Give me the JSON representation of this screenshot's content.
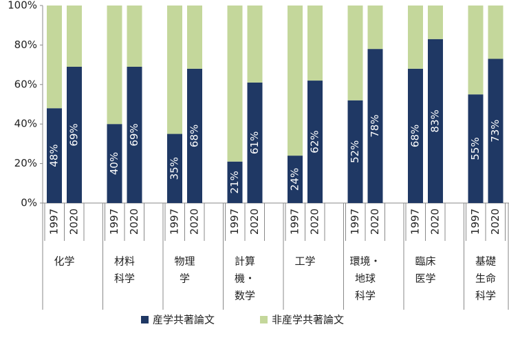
{
  "chart_data": {
    "type": "stacked_bar",
    "groups": [
      [
        "化学"
      ],
      [
        "材料",
        "科学"
      ],
      [
        "物理",
        "学"
      ],
      [
        "計算",
        "機・",
        "数学"
      ],
      [
        "工学"
      ],
      [
        "環境・",
        "地球",
        "科学"
      ],
      [
        "臨床",
        "医学"
      ],
      [
        "基礎",
        "生命",
        "科学"
      ]
    ],
    "categories": [
      "1997",
      "2020",
      "1997",
      "2020",
      "1997",
      "2020",
      "1997",
      "2020",
      "1997",
      "2020",
      "1997",
      "2020",
      "1997",
      "2020",
      "1997",
      "2020"
    ],
    "series": [
      {
        "name": "産学共著論文",
        "color": "#1f3864",
        "values": [
          48,
          69,
          40,
          69,
          35,
          68,
          21,
          61,
          24,
          62,
          52,
          78,
          68,
          83,
          55,
          73
        ],
        "value_labels": [
          "48%",
          "69%",
          "40%",
          "69%",
          "35%",
          "68%",
          "21%",
          "61%",
          "24%",
          "62%",
          "52%",
          "78%",
          "68%",
          "83%",
          "55%",
          "73%"
        ]
      },
      {
        "name": "非産学共著論文",
        "color": "#c4d79b",
        "values": [
          52,
          31,
          60,
          31,
          65,
          32,
          79,
          39,
          76,
          38,
          48,
          22,
          32,
          17,
          45,
          27
        ]
      }
    ],
    "ylim": [
      0,
      100
    ],
    "yticks": [
      {
        "value": 0,
        "label": "0%"
      },
      {
        "value": 20,
        "label": "20%"
      },
      {
        "value": 40,
        "label": "40%"
      },
      {
        "value": 60,
        "label": "60%"
      },
      {
        "value": 80,
        "label": "80%"
      },
      {
        "value": 100,
        "label": "100%"
      }
    ]
  }
}
